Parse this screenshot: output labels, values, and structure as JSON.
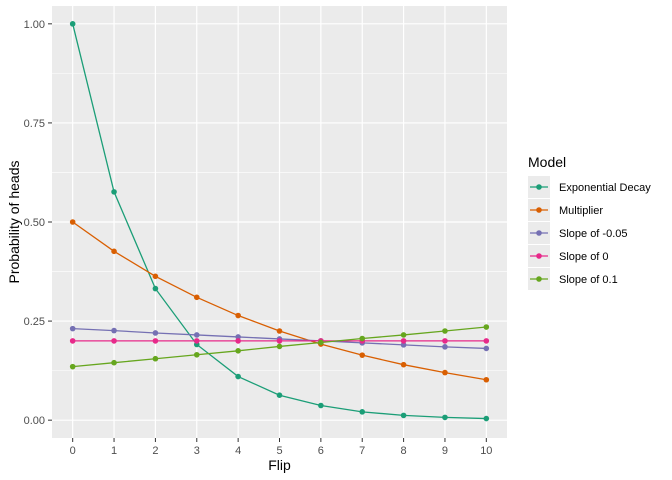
{
  "chart_data": {
    "type": "line",
    "xlabel": "Flip",
    "ylabel": "Probability of heads",
    "xlim": [
      0,
      10
    ],
    "ylim": [
      0,
      1
    ],
    "x": [
      0,
      1,
      2,
      3,
      4,
      5,
      6,
      7,
      8,
      9,
      10
    ],
    "x_ticks": [
      "0",
      "1",
      "2",
      "3",
      "4",
      "5",
      "6",
      "7",
      "8",
      "9",
      "10"
    ],
    "y_ticks": [
      "0.00",
      "0.25",
      "0.50",
      "0.75",
      "1.00"
    ],
    "y_tick_values": [
      0,
      0.25,
      0.5,
      0.75,
      1.0
    ],
    "grid": true,
    "legend_title": "Model",
    "legend_position": "right",
    "series": [
      {
        "name": "Exponential Decay",
        "color": "#1b9e77",
        "values": [
          1.0,
          0.576,
          0.332,
          0.191,
          0.11,
          0.063,
          0.037,
          0.021,
          0.012,
          0.007,
          0.004
        ]
      },
      {
        "name": "Multiplier",
        "color": "#d95f02",
        "values": [
          0.5,
          0.426,
          0.363,
          0.31,
          0.264,
          0.225,
          0.192,
          0.164,
          0.14,
          0.12,
          0.102
        ]
      },
      {
        "name": "Slope of -0.05",
        "color": "#7570b3",
        "values": [
          0.231,
          0.226,
          0.22,
          0.215,
          0.21,
          0.205,
          0.2,
          0.195,
          0.19,
          0.185,
          0.181
        ]
      },
      {
        "name": "Slope of 0",
        "color": "#e7298a",
        "values": [
          0.2,
          0.2,
          0.2,
          0.2,
          0.2,
          0.2,
          0.2,
          0.2,
          0.2,
          0.2,
          0.2
        ]
      },
      {
        "name": "Slope of 0.1",
        "color": "#66a61e",
        "values": [
          0.135,
          0.145,
          0.155,
          0.165,
          0.175,
          0.186,
          0.196,
          0.206,
          0.215,
          0.225,
          0.235
        ]
      }
    ]
  }
}
